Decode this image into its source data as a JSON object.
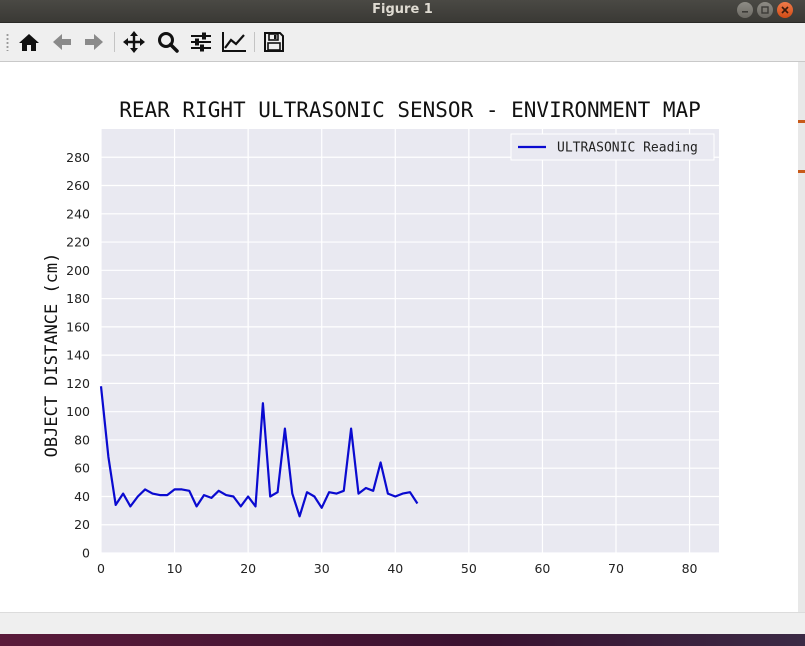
{
  "window": {
    "title": "Figure 1",
    "buttons": [
      "minimize",
      "maximize",
      "close"
    ]
  },
  "toolbar": {
    "tools": [
      {
        "name": "home-button",
        "icon": "home-icon"
      },
      {
        "name": "back-button",
        "icon": "arrow-left-icon"
      },
      {
        "name": "forward-button",
        "icon": "arrow-right-icon"
      },
      {
        "name": "pan-button",
        "icon": "move-icon"
      },
      {
        "name": "zoom-button",
        "icon": "zoom-icon"
      },
      {
        "name": "configure-subplots-button",
        "icon": "sliders-icon"
      },
      {
        "name": "edit-axis-button",
        "icon": "line-chart-icon"
      },
      {
        "name": "save-button",
        "icon": "floppy-disk-icon"
      }
    ]
  },
  "colors": {
    "plot_background": "#e9e9f1",
    "grid": "#ffffff",
    "line": "#0a0ad0"
  },
  "chart_data": {
    "type": "line",
    "title": "REAR RIGHT ULTRASONIC SENSOR - ENVIRONMENT MAP",
    "xlabel": "",
    "ylabel": "OBJECT DISTANCE (cm)",
    "xlim": [
      0,
      84
    ],
    "ylim": [
      0,
      300
    ],
    "xticks": [
      0,
      10,
      20,
      30,
      40,
      50,
      60,
      70,
      80
    ],
    "yticks": [
      0,
      20,
      40,
      60,
      80,
      100,
      120,
      140,
      160,
      180,
      200,
      220,
      240,
      260,
      280
    ],
    "grid": true,
    "legend_position": "top-right",
    "series": [
      {
        "name": "ULTRASONIC Reading",
        "color": "#0a0ad0",
        "x": [
          0,
          1,
          2,
          3,
          4,
          5,
          6,
          7,
          8,
          9,
          10,
          11,
          12,
          13,
          14,
          15,
          16,
          17,
          18,
          19,
          20,
          21,
          22,
          23,
          24,
          25,
          26,
          27,
          28,
          29,
          30,
          31,
          32,
          33,
          34,
          35,
          36,
          37,
          38,
          39,
          40,
          41,
          42,
          43
        ],
        "y": [
          118,
          68,
          34,
          42,
          33,
          40,
          45,
          42,
          41,
          41,
          45,
          45,
          44,
          33,
          41,
          39,
          44,
          41,
          40,
          33,
          40,
          33,
          106,
          40,
          43,
          88,
          42,
          26,
          43,
          40,
          32,
          43,
          42,
          44,
          88,
          42,
          46,
          44,
          64,
          42,
          40,
          42,
          43,
          35
        ]
      }
    ]
  }
}
